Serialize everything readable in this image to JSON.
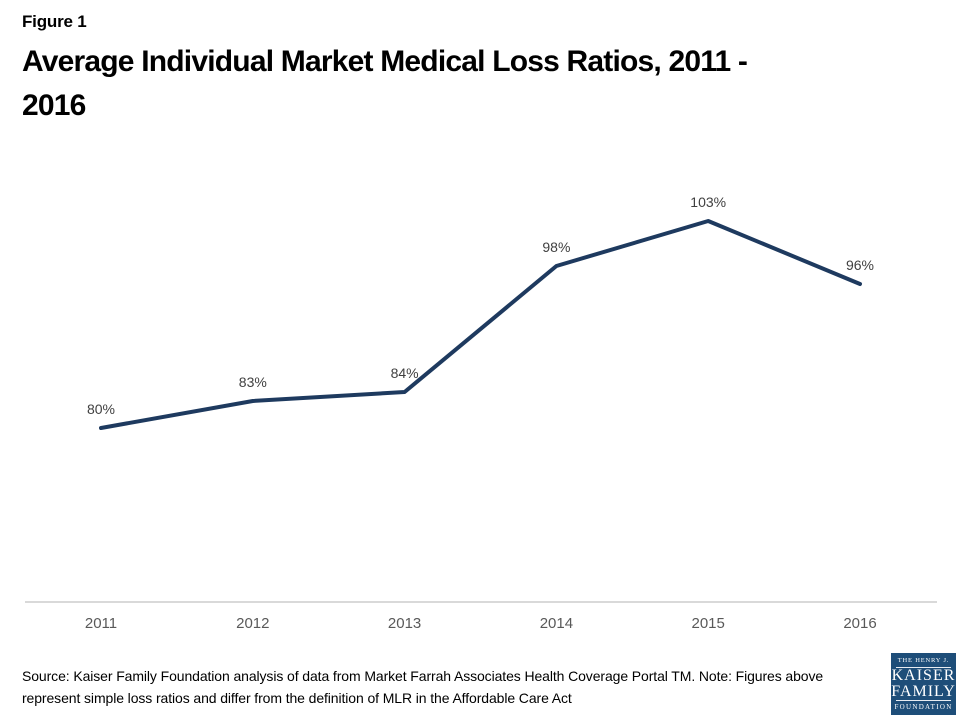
{
  "figure_label": "Figure 1",
  "title_display": "Average Individual Market Medical Loss Ratios, 2011 -\n2016",
  "source_note": "Source: Kaiser Family Foundation analysis of data from Market Farrah Associates Health Coverage Portal TM. Note: Figures above\nrepresent simple loss ratios and differ from the definition of MLR in the Affordable Care Act",
  "logo": {
    "line1": "THE HENRY J.",
    "line2": "KAISER",
    "line3": "FAMILY",
    "line4": "FOUNDATION",
    "bg_color": "#1e4e79"
  },
  "colors": {
    "line": "#1e3a5f",
    "data_label": "#404040",
    "axis_label": "#595959",
    "axis_line": "#d9d9d9",
    "title": "#000000"
  },
  "chart_data": {
    "type": "line",
    "title": "Average Individual Market Medical Loss Ratios, 2011 - 2016",
    "categories": [
      "2011",
      "2012",
      "2013",
      "2014",
      "2015",
      "2016"
    ],
    "values": [
      80,
      83,
      84,
      98,
      103,
      96
    ],
    "data_labels": [
      "80%",
      "83%",
      "84%",
      "98%",
      "103%",
      "96%"
    ],
    "xlabel": "",
    "ylabel": "",
    "ylim_estimated": [
      60,
      110
    ],
    "grid": false,
    "legend": "none",
    "line_color": "#1e3a5f",
    "marker": "none",
    "data_label_position": "above"
  }
}
